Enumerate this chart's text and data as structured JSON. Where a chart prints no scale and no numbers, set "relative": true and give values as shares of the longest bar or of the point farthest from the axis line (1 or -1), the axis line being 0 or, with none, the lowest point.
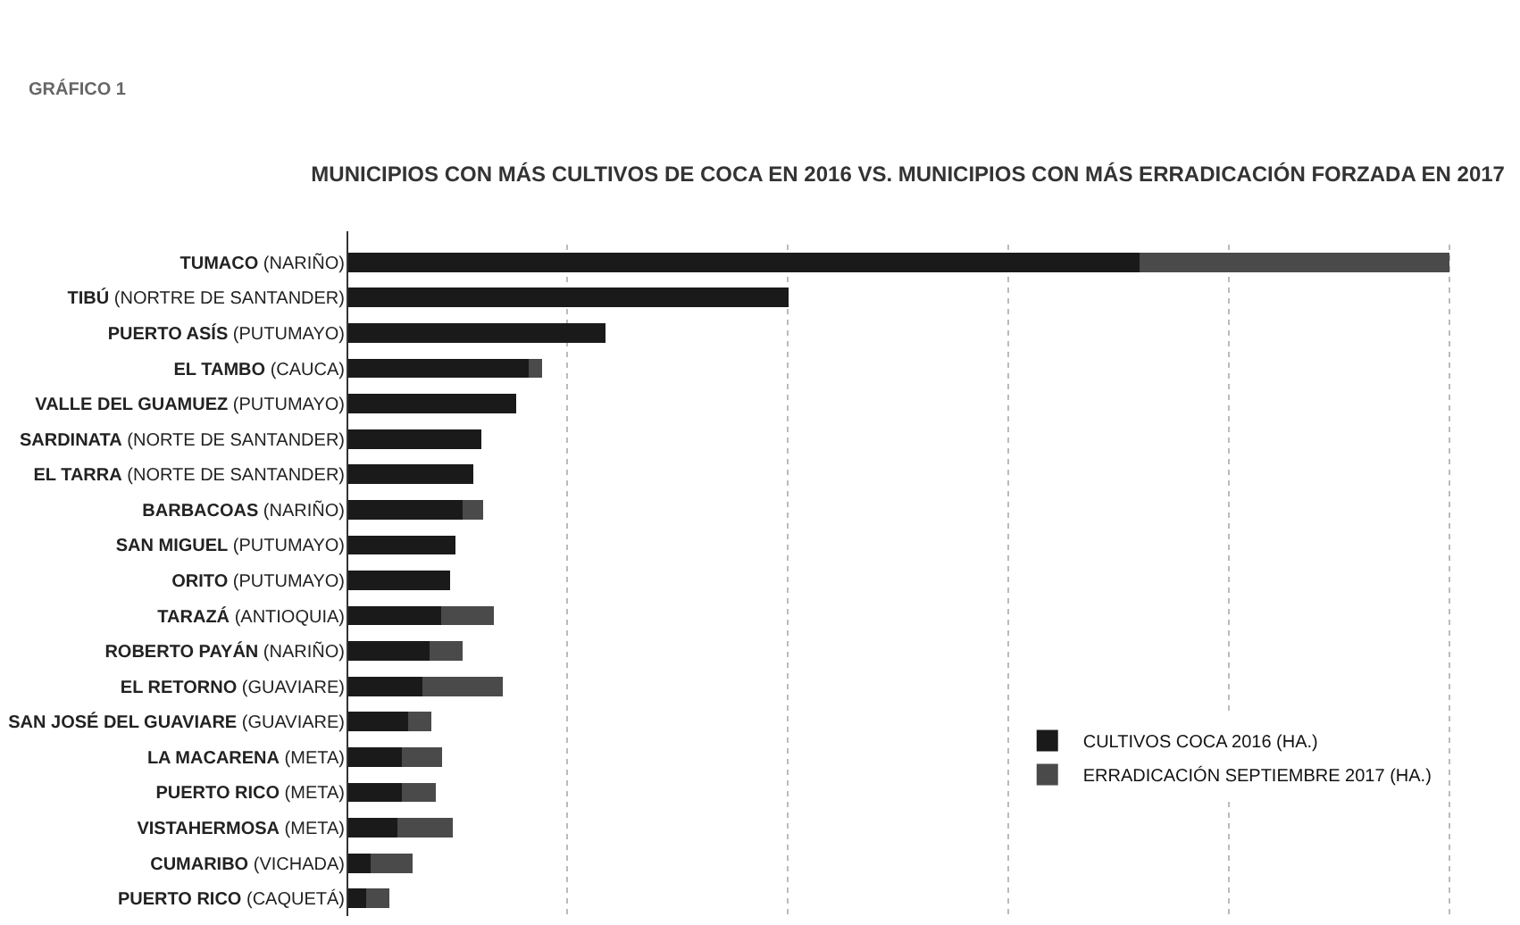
{
  "chart_data": {
    "type": "bar",
    "orientation": "horizontal",
    "stacked": true,
    "relative": true,
    "title": "MUNICIPIOS CON MÁS CULTIVOS DE COCA EN 2016 VS. MUNICIPIOS CON MÁS ERRADICACIÓN FORZADA EN 2017",
    "annotations": [
      "GRÁFICO 1"
    ],
    "categories": [
      "TUMACO (NARIÑO)",
      "TIBÚ (NORTRE DE SANTANDER)",
      "PUERTO ASÍS (PUTUMAYO)",
      "EL TAMBO (CAUCA)",
      "VALLE DEL GUAMUEZ (PUTUMAYO)",
      "SARDINATA (NORTE DE SANTANDER)",
      "EL TARRA (NORTE DE SANTANDER)",
      "BARBACOAS (NARIÑO)",
      "SAN MIGUEL (PUTUMAYO)",
      "ORITO (PUTUMAYO)",
      "TARAZÁ (ANTIOQUIA)",
      "ROBERTO PAYÁN (NARIÑO)",
      "EL RETORNO (GUAVIARE)",
      "SAN JOSÉ DEL GUAVIARE (GUAVIARE)",
      "LA MACARENA (META)",
      "PUERTO RICO (META)",
      "VISTAHERMOSA (META)",
      "CUMARIBO (VICHADA)",
      "PUERTO RICO (CAQUETÁ)"
    ],
    "series": [
      {
        "name": "CULTIVOS COCA 2016 (HA.)",
        "color": "#1a1a1a",
        "values": [
          0.719,
          0.401,
          0.235,
          0.165,
          0.154,
          0.122,
          0.115,
          0.105,
          0.099,
          0.094,
          0.086,
          0.075,
          0.069,
          0.056,
          0.05,
          0.05,
          0.046,
          0.022,
          0.018
        ]
      },
      {
        "name": "ERRADICACIÓN SEPTIEMBRE 2017 (HA.)",
        "color": "#4a4a4a",
        "values": [
          0.281,
          0,
          0,
          0.012,
          0,
          0,
          0,
          0.019,
          0,
          0,
          0.048,
          0.03,
          0.073,
          0.021,
          0.037,
          0.031,
          0.05,
          0.038,
          0.021
        ]
      }
    ],
    "grid": "x",
    "legend": "bottom right"
  }
}
